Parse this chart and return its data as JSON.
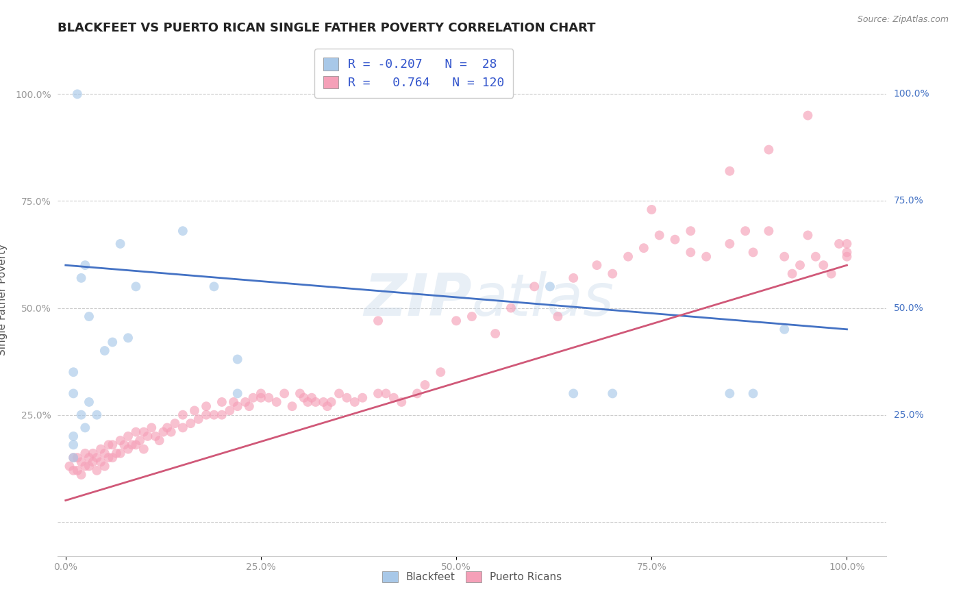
{
  "title": "BLACKFEET VS PUERTO RICAN SINGLE FATHER POVERTY CORRELATION CHART",
  "source": "Source: ZipAtlas.com",
  "ylabel": "Single Father Poverty",
  "watermark": "ZIPAtlas",
  "xlim": [
    -0.01,
    1.05
  ],
  "ylim": [
    -0.08,
    1.12
  ],
  "x_ticks": [
    0.0,
    0.25,
    0.5,
    0.75,
    1.0
  ],
  "x_tick_labels": [
    "0.0%",
    "25.0%",
    "50.0%",
    "75.0%",
    "100.0%"
  ],
  "y_ticks": [
    0.0,
    0.25,
    0.5,
    0.75,
    1.0
  ],
  "y_tick_labels": [
    "",
    "25.0%",
    "50.0%",
    "75.0%",
    "100.0%"
  ],
  "right_labels": [
    [
      "100.0%",
      1.0
    ],
    [
      "75.0%",
      0.75
    ],
    [
      "50.0%",
      0.5
    ],
    [
      "25.0%",
      0.25
    ]
  ],
  "legend_R1": "-0.207",
  "legend_N1": "28",
  "legend_R2": "0.764",
  "legend_N2": "120",
  "blackfeet_color": "#a8c8e8",
  "puerto_rican_color": "#f5a0b8",
  "blackfeet_line_color": "#4472c4",
  "puerto_rican_line_color": "#d05878",
  "bf_line_x0": 0.0,
  "bf_line_x1": 1.0,
  "bf_line_y0": 0.6,
  "bf_line_y1": 0.45,
  "pr_line_x0": 0.0,
  "pr_line_x1": 1.0,
  "pr_line_y0": 0.05,
  "pr_line_y1": 0.6,
  "blackfeet_x": [
    0.01,
    0.01,
    0.01,
    0.015,
    0.02,
    0.025,
    0.03,
    0.04,
    0.05,
    0.01,
    0.01,
    0.02,
    0.025,
    0.03,
    0.06,
    0.07,
    0.08,
    0.09,
    0.15,
    0.19,
    0.22,
    0.22,
    0.62,
    0.65,
    0.7,
    0.85,
    0.88,
    0.92
  ],
  "blackfeet_y": [
    0.18,
    0.2,
    0.15,
    1.0,
    0.25,
    0.22,
    0.28,
    0.25,
    0.4,
    0.3,
    0.35,
    0.57,
    0.6,
    0.48,
    0.42,
    0.65,
    0.43,
    0.55,
    0.68,
    0.55,
    0.3,
    0.38,
    0.55,
    0.3,
    0.3,
    0.3,
    0.3,
    0.45
  ],
  "puerto_rican_x": [
    0.005,
    0.01,
    0.01,
    0.015,
    0.015,
    0.02,
    0.02,
    0.025,
    0.025,
    0.03,
    0.03,
    0.035,
    0.035,
    0.04,
    0.04,
    0.045,
    0.045,
    0.05,
    0.05,
    0.055,
    0.055,
    0.06,
    0.06,
    0.065,
    0.07,
    0.07,
    0.075,
    0.08,
    0.08,
    0.085,
    0.09,
    0.09,
    0.095,
    0.1,
    0.1,
    0.105,
    0.11,
    0.115,
    0.12,
    0.125,
    0.13,
    0.135,
    0.14,
    0.15,
    0.15,
    0.16,
    0.165,
    0.17,
    0.18,
    0.18,
    0.19,
    0.2,
    0.2,
    0.21,
    0.215,
    0.22,
    0.23,
    0.235,
    0.24,
    0.25,
    0.25,
    0.26,
    0.27,
    0.28,
    0.29,
    0.3,
    0.305,
    0.31,
    0.315,
    0.32,
    0.33,
    0.335,
    0.34,
    0.35,
    0.36,
    0.37,
    0.38,
    0.4,
    0.41,
    0.42,
    0.43,
    0.45,
    0.46,
    0.48,
    0.5,
    0.52,
    0.55,
    0.57,
    0.6,
    0.63,
    0.65,
    0.68,
    0.7,
    0.72,
    0.74,
    0.76,
    0.78,
    0.8,
    0.82,
    0.85,
    0.87,
    0.88,
    0.9,
    0.92,
    0.93,
    0.94,
    0.95,
    0.96,
    0.97,
    0.98,
    0.99,
    1.0,
    1.0,
    1.0,
    0.75,
    0.8,
    0.85,
    0.9,
    0.95,
    0.4
  ],
  "puerto_rican_y": [
    0.13,
    0.12,
    0.15,
    0.12,
    0.15,
    0.11,
    0.14,
    0.13,
    0.16,
    0.13,
    0.15,
    0.14,
    0.16,
    0.12,
    0.15,
    0.14,
    0.17,
    0.13,
    0.16,
    0.15,
    0.18,
    0.15,
    0.18,
    0.16,
    0.16,
    0.19,
    0.18,
    0.17,
    0.2,
    0.18,
    0.18,
    0.21,
    0.19,
    0.17,
    0.21,
    0.2,
    0.22,
    0.2,
    0.19,
    0.21,
    0.22,
    0.21,
    0.23,
    0.22,
    0.25,
    0.23,
    0.26,
    0.24,
    0.25,
    0.27,
    0.25,
    0.25,
    0.28,
    0.26,
    0.28,
    0.27,
    0.28,
    0.27,
    0.29,
    0.29,
    0.3,
    0.29,
    0.28,
    0.3,
    0.27,
    0.3,
    0.29,
    0.28,
    0.29,
    0.28,
    0.28,
    0.27,
    0.28,
    0.3,
    0.29,
    0.28,
    0.29,
    0.3,
    0.3,
    0.29,
    0.28,
    0.3,
    0.32,
    0.35,
    0.47,
    0.48,
    0.44,
    0.5,
    0.55,
    0.48,
    0.57,
    0.6,
    0.58,
    0.62,
    0.64,
    0.67,
    0.66,
    0.63,
    0.62,
    0.65,
    0.68,
    0.63,
    0.68,
    0.62,
    0.58,
    0.6,
    0.67,
    0.62,
    0.6,
    0.58,
    0.65,
    0.62,
    0.65,
    0.63,
    0.73,
    0.68,
    0.82,
    0.87,
    0.95,
    0.47
  ],
  "background_color": "#ffffff",
  "grid_color": "#cccccc",
  "title_fontsize": 13,
  "label_fontsize": 11,
  "tick_fontsize": 10,
  "legend_fontsize": 13,
  "marker_size": 100,
  "marker_alpha": 0.65
}
